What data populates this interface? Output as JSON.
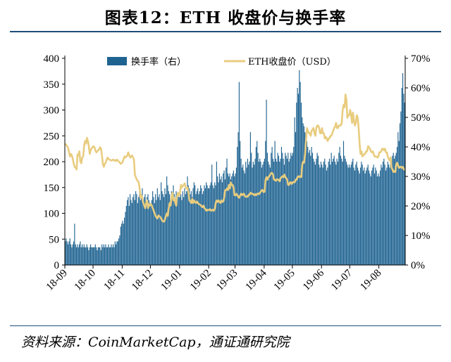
{
  "title": "图表12：ETH 收盘价与换手率",
  "source": "资料来源：CoinMarketCap，通证通研究院",
  "chart_data": {
    "type": "bar+line",
    "xlabel": "",
    "ylabel_left": "",
    "ylabel_right": "",
    "left_ylim": [
      0,
      400
    ],
    "left_ticks": [
      "0",
      "50",
      "100",
      "150",
      "200",
      "250",
      "300",
      "350",
      "400"
    ],
    "right_ylim": [
      0,
      70
    ],
    "right_ticks": [
      "0%",
      "10%",
      "20%",
      "30%",
      "40%",
      "50%",
      "60%",
      "70%"
    ],
    "x_ticks": [
      "18-09",
      "18-10",
      "18-11",
      "18-12",
      "19-01",
      "19-02",
      "19-03",
      "19-04",
      "19-05",
      "19-06",
      "19-07",
      "19-08"
    ],
    "legend": [
      {
        "label": "换手率（右）",
        "color": "#1f6391",
        "kind": "bar"
      },
      {
        "label": "ETH收盘价（USD）",
        "color": "#e8cc7f",
        "kind": "line"
      }
    ],
    "series": [
      {
        "name": "换手率（右）",
        "axis": "right",
        "unit": "%",
        "monthly": [
          {
            "month": "18-09",
            "values": [
              8,
              9,
              8,
              7,
              8,
              9,
              7,
              6,
              7,
              8,
              14,
              7,
              6,
              7,
              6,
              7,
              8,
              6,
              7,
              6,
              7,
              6,
              6,
              7,
              6,
              5,
              6,
              7,
              6,
              6
            ]
          },
          {
            "month": "18-10",
            "values": [
              6,
              6,
              7,
              6,
              5,
              6,
              6,
              6,
              5,
              7,
              6,
              7,
              6,
              7,
              6,
              6,
              7,
              6,
              6,
              7,
              6,
              7,
              6,
              8,
              7,
              8,
              8,
              9,
              10,
              13,
              14
            ]
          },
          {
            "month": "18-11",
            "values": [
              15,
              14,
              16,
              18,
              20,
              22,
              23,
              20,
              24,
              22,
              21,
              23,
              24,
              22,
              25,
              24,
              21,
              23,
              25,
              22,
              24,
              26,
              22,
              23,
              24,
              21,
              23,
              24,
              22,
              21
            ]
          },
          {
            "month": "18-12",
            "values": [
              20,
              22,
              25,
              23,
              21,
              24,
              22,
              26,
              23,
              24,
              22,
              28,
              25,
              24,
              23,
              26,
              24,
              30,
              27,
              25,
              24,
              22,
              25,
              23,
              27,
              24,
              22,
              25,
              24,
              23,
              24
            ]
          },
          {
            "month": "19-01",
            "values": [
              23,
              24,
              22,
              25,
              23,
              26,
              24,
              25,
              30,
              27,
              26,
              24,
              25,
              23,
              26,
              28,
              27,
              24,
              25,
              26,
              24,
              25,
              27,
              26,
              24,
              25,
              27,
              26,
              28,
              27,
              26
            ]
          },
          {
            "month": "19-02",
            "values": [
              26,
              27,
              28,
              34,
              27,
              26,
              28,
              27,
              35,
              30,
              28,
              31,
              29,
              30,
              28,
              31,
              32,
              29,
              33,
              36,
              31,
              30,
              31,
              29,
              30,
              31,
              32,
              30
            ]
          },
          {
            "month": "19-03",
            "values": [
              31,
              33,
              40,
              45,
              62,
              42,
              36,
              33,
              34,
              32,
              31,
              35,
              33,
              36,
              34,
              35,
              45,
              38,
              33,
              35,
              34,
              36,
              40,
              42,
              38,
              35,
              36,
              35,
              33,
              34,
              35
            ]
          },
          {
            "month": "19-04",
            "values": [
              36,
              42,
              56,
              38,
              35,
              34,
              33,
              38,
              40,
              36,
              35,
              42,
              36,
              35,
              38,
              37,
              35,
              36,
              40,
              38,
              36,
              34,
              38,
              37,
              36,
              38,
              35,
              36,
              38,
              37
            ]
          },
          {
            "month": "19-05",
            "values": [
              38,
              40,
              50,
              45,
              55,
              60,
              58,
              66,
              62,
              55,
              50,
              48,
              47,
              45,
              44,
              42,
              40,
              38,
              39,
              37,
              40,
              38,
              36,
              35,
              34,
              36,
              38,
              37,
              34,
              33,
              35
            ]
          },
          {
            "month": "19-06",
            "values": [
              34,
              33,
              35,
              36,
              34,
              32,
              33,
              35,
              36,
              34,
              38,
              35,
              36,
              37,
              35,
              34,
              36,
              35,
              38,
              40,
              37,
              36,
              35,
              42,
              37,
              36,
              35,
              34,
              33,
              34
            ]
          },
          {
            "month": "19-07",
            "values": [
              33,
              34,
              35,
              36,
              33,
              32,
              34,
              35,
              33,
              32,
              31,
              33,
              35,
              34,
              32,
              33,
              31,
              32,
              33,
              34,
              32,
              31,
              30,
              32,
              33,
              34,
              31,
              33,
              32,
              30,
              31
            ]
          },
          {
            "month": "19-08",
            "values": [
              30,
              32,
              34,
              33,
              35,
              36,
              34,
              32,
              33,
              35,
              34,
              33,
              36,
              35,
              37,
              38,
              36,
              37,
              38,
              40,
              45,
              42,
              48,
              52,
              60,
              65,
              58,
              55
            ]
          }
        ]
      },
      {
        "name": "ETH收盘价（USD）",
        "axis": "left",
        "unit": "USD",
        "monthly": [
          {
            "month": "18-09",
            "values": [
              235,
              232,
              230,
              226,
              218,
              210,
              215,
              212,
              205,
              196,
              190,
              188,
              185,
              214,
              212,
              220,
              200,
              197,
              208,
              210,
              230,
              240,
              235,
              246,
              240,
              230,
              215,
              222,
              226,
              228
            ]
          },
          {
            "month": "18-10",
            "values": [
              230,
              228,
              222,
              218,
              220,
              222,
              224,
              228,
              225,
              212,
              195,
              190,
              196,
              198,
              204,
              208,
              205,
              204,
              203,
              202,
              203,
              204,
              202,
              203,
              201,
              204,
              202,
              200,
              198,
              196,
              197
            ]
          },
          {
            "month": "18-11",
            "values": [
              200,
              205,
              210,
              208,
              210,
              212,
              218,
              212,
              208,
              210,
              212,
              208,
              204,
              175,
              170,
              165,
              163,
              160,
              150,
              130,
              135,
              128,
              120,
              115,
              110,
              120,
              125,
              110,
              118,
              115
            ]
          },
          {
            "month": "18-12",
            "values": [
              118,
              115,
              110,
              105,
              100,
              95,
              92,
              90,
              96,
              94,
              93,
              90,
              86,
              84,
              84,
              88,
              95,
              100,
              95,
              110,
              120,
              115,
              132,
              140,
              125,
              130,
              120,
              115,
              135,
              140,
              134
            ]
          },
          {
            "month": "19-01",
            "values": [
              140,
              155,
              150,
              153,
              155,
              158,
              150,
              148,
              150,
              140,
              125,
              123,
              120,
              128,
              120,
              125,
              122,
              120,
              123,
              120,
              118,
              117,
              116,
              113,
              112,
              115,
              110,
              108,
              105,
              107,
              106
            ]
          },
          {
            "month": "19-02",
            "values": [
              107,
              108,
              105,
              106,
              107,
              105,
              108,
              120,
              125,
              122,
              125,
              122,
              120,
              125,
              122,
              123,
              130,
              145,
              145,
              148,
              145,
              155,
              148,
              160,
              155,
              155,
              150,
              135
            ]
          },
          {
            "month": "19-03",
            "values": [
              135,
              138,
              135,
              132,
              130,
              135,
              138,
              135,
              137,
              138,
              133,
              132,
              133,
              132,
              136,
              136,
              140,
              138,
              138,
              137,
              135,
              137,
              135,
              138,
              138,
              137,
              140,
              142,
              145,
              145,
              141
            ]
          },
          {
            "month": "19-04",
            "values": [
              142,
              165,
              170,
              165,
              170,
              172,
              175,
              178,
              178,
              175,
              165,
              165,
              163,
              166,
              165,
              165,
              162,
              168,
              170,
              172,
              170,
              175,
              170,
              168,
              165,
              155,
              155,
              160,
              160,
              157
            ]
          },
          {
            "month": "19-05",
            "values": [
              160,
              161,
              160,
              165,
              165,
              170,
              172,
              170,
              172,
              170,
              195,
              200,
              198,
              215,
              240,
              265,
              260,
              255,
              255,
              250,
              260,
              262,
              265,
              255,
              250,
              265,
              270,
              270,
              265,
              255,
              255
            ]
          },
          {
            "month": "19-06",
            "values": [
              265,
              255,
              255,
              245,
              248,
              245,
              240,
              245,
              245,
              250,
              250,
              255,
              260,
              265,
              268,
              275,
              265,
              265,
              270,
              270,
              270,
              275,
              300,
              310,
              305,
              330,
              320,
              285,
              290,
              290
            ]
          },
          {
            "month": "19-07",
            "values": [
              300,
              290,
              275,
              295,
              280,
              270,
              275,
              290,
              285,
              265,
              235,
              215,
              220,
              210,
              212,
              215,
              215,
              220,
              220,
              230,
              228,
              225,
              220,
              218,
              220,
              215,
              210,
              210,
              210,
              208,
              210
            ]
          },
          {
            "month": "19-08",
            "values": [
              218,
              218,
              220,
              225,
              225,
              222,
              225,
              218,
              218,
              210,
              205,
              202,
              208,
              188,
              185,
              180,
              182,
              180,
              195,
              198,
              192,
              188,
              190,
              190,
              188,
              190,
              185,
              185
            ]
          }
        ]
      }
    ]
  }
}
